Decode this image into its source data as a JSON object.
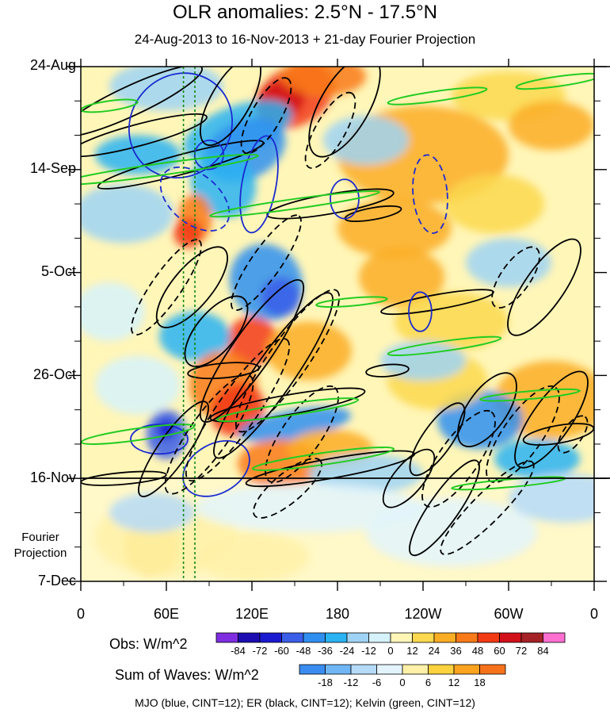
{
  "chart_data": {
    "type": "heatmap",
    "title": "OLR anomalies: 2.5°N - 17.5°N",
    "subtitle": "24-Aug-2013 to 16-Nov-2013 + 21-day Fourier Projection",
    "x_ticks": [
      "0",
      "60E",
      "120E",
      "180",
      "120W",
      "60W",
      "0"
    ],
    "x_tick_lon": [
      0,
      60,
      120,
      180,
      240,
      300,
      360
    ],
    "y_ticks": [
      "24-Aug",
      "14-Sep",
      "5-Oct",
      "26-Oct",
      "16-Nov",
      "7-Dec"
    ],
    "y_tick_day": [
      0,
      21,
      42,
      63,
      84,
      105
    ],
    "observation_end_label": "16-Nov",
    "projection_label": [
      "Fourier",
      "Projection"
    ],
    "obs_legend": {
      "title": "Obs: W/m^2",
      "levels": [
        -84,
        -72,
        -60,
        -48,
        -36,
        -24,
        -12,
        0,
        12,
        24,
        36,
        48,
        60,
        72,
        84
      ],
      "colors": [
        "#7e2ee0",
        "#1c0eb0",
        "#1a1ad0",
        "#3a5ee8",
        "#2f8ff0",
        "#2ab3f2",
        "#9fd3f5",
        "#d6f2fb",
        "#fff6b8",
        "#fcd84e",
        "#fbad24",
        "#f97a18",
        "#f23a14",
        "#d1101a",
        "#a52226",
        "#ff6fd0"
      ]
    },
    "waves_legend": {
      "title": "Sum of Waves: W/m^2",
      "levels": [
        -18,
        -12,
        -6,
        0,
        6,
        12,
        18
      ],
      "colors": [
        "#3a8cf0",
        "#6fb6f6",
        "#b5dbf9",
        "#e3f4fc",
        "#fff1a8",
        "#fcd23e",
        "#fba21e",
        "#f6721a"
      ]
    },
    "footnote": "MJO (blue, CINT=12); ER (black, CINT=12); Kelvin (green, CINT=12)",
    "mjo_contour_color": "#1a2ad0",
    "er_contour_color": "#000000",
    "kelvin_contour_color": "#22cc22",
    "vertical_marker_lon": [
      72,
      80
    ],
    "vertical_marker_color": "#118811"
  }
}
